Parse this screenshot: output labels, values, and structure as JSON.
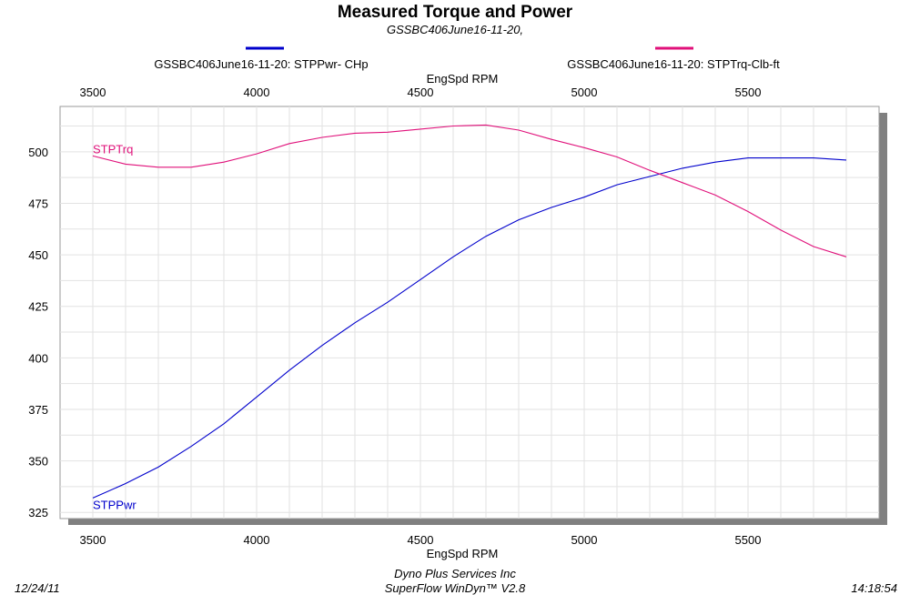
{
  "chart_data": {
    "type": "line",
    "title": "Measured Torque and Power",
    "subtitle": "GSSBC406June16-11-20,",
    "xlabel": "EngSpd  RPM",
    "xlabel_top": "EngSpd  RPM",
    "ylabel": "",
    "xlim": [
      3400,
      5900
    ],
    "ylim": [
      322,
      522
    ],
    "x_ticks": [
      3500,
      4000,
      4500,
      5000,
      5500
    ],
    "y_ticks": [
      325,
      350,
      375,
      400,
      425,
      450,
      475,
      500
    ],
    "grid": true,
    "legend": [
      {
        "label": "GSSBC406June16-11-20: STPPwr- CHp",
        "color": "#0000cc"
      },
      {
        "label": "GSSBC406June16-11-20: STPTrq-Clb-ft",
        "color": "#e0107a"
      }
    ],
    "series": [
      {
        "name": "STPPwr",
        "color": "#0000cc",
        "x": [
          3500,
          3600,
          3700,
          3800,
          3900,
          4000,
          4100,
          4200,
          4300,
          4400,
          4500,
          4600,
          4700,
          4800,
          4900,
          5000,
          5100,
          5200,
          5300,
          5400,
          5500,
          5600,
          5700,
          5800
        ],
        "values": [
          332,
          339,
          347,
          357,
          368,
          381,
          394,
          406,
          417,
          427,
          438,
          449,
          459,
          467,
          473,
          478,
          484,
          488,
          492,
          495,
          497,
          497,
          497,
          496
        ]
      },
      {
        "name": "STPTrq",
        "color": "#e0107a",
        "x": [
          3500,
          3600,
          3700,
          3800,
          3900,
          4000,
          4100,
          4200,
          4300,
          4400,
          4500,
          4600,
          4700,
          4800,
          4900,
          5000,
          5100,
          5200,
          5300,
          5400,
          5500,
          5600,
          5700,
          5800
        ],
        "values": [
          498,
          494,
          492.5,
          492.5,
          495,
          499,
          504,
          507,
          509,
          509.5,
          511,
          512.5,
          513,
          510.5,
          506,
          502,
          497.5,
          491,
          485,
          479,
          471,
          462,
          454,
          449
        ]
      }
    ]
  },
  "footer": {
    "date": "12/24/11",
    "company": "Dyno Plus Services Inc",
    "software": "SuperFlow WinDyn™ V2.8",
    "time": "14:18:54"
  }
}
